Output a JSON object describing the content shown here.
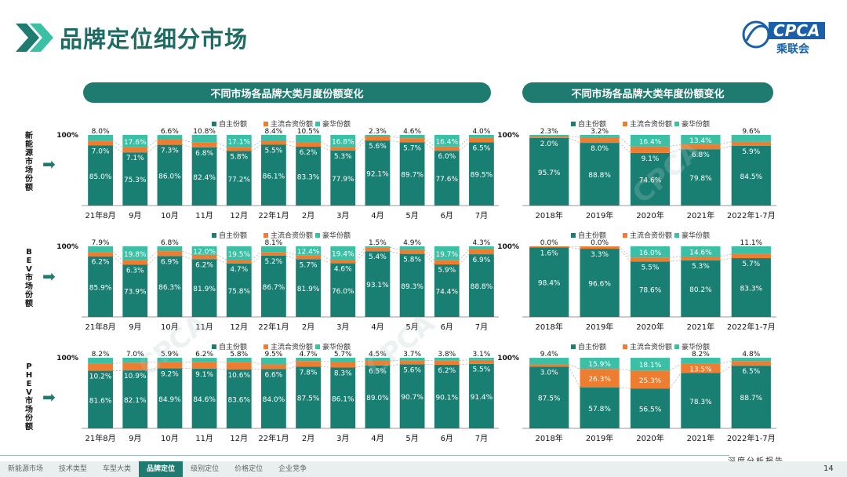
{
  "page": {
    "title": "品牌定位细分市场",
    "logo_text": "CPCA",
    "logo_sub": "乘联会",
    "footer_tag": "深度分析报告",
    "page_number": "14"
  },
  "sections": {
    "monthly_header": "不同市场各品牌大类月度份额变化",
    "annual_header": "不同市场各品牌大类年度份额变化"
  },
  "row_labels": [
    "新能源市场份额",
    "BEV市场份额",
    "PHEV市场份额"
  ],
  "nav": [
    "新能源市场",
    "技术类型",
    "车型大类",
    "品牌定位",
    "级别定位",
    "价格定位",
    "企业竞争"
  ],
  "nav_active": 3,
  "colors": {
    "own": "#1a7f73",
    "jv": "#ed7d31",
    "lux": "#3bbfa5",
    "accent": "#1f7a70"
  },
  "chart_data": [
    {
      "type": "bar",
      "stacked": true,
      "id": "nev-monthly",
      "title": "新能源市场份额",
      "ytick": "100%",
      "categories": [
        "21年8月",
        "9月",
        "10月",
        "11月",
        "12月",
        "22年1月",
        "2月",
        "3月",
        "4月",
        "5月",
        "6月",
        "7月"
      ],
      "series": [
        {
          "name": "自主份额",
          "values": [
            85.0,
            75.3,
            86.0,
            82.4,
            77.2,
            86.1,
            83.3,
            77.9,
            92.1,
            89.7,
            77.6,
            89.5
          ]
        },
        {
          "name": "主流合资份额",
          "values": [
            7.0,
            7.1,
            7.3,
            6.8,
            5.8,
            5.5,
            6.2,
            5.3,
            5.6,
            5.7,
            6.0,
            6.5
          ]
        },
        {
          "name": "豪华份额",
          "values": [
            8.0,
            17.6,
            6.6,
            10.8,
            17.1,
            8.4,
            10.5,
            16.8,
            2.3,
            4.6,
            16.4,
            4.0
          ]
        }
      ]
    },
    {
      "type": "bar",
      "stacked": true,
      "id": "nev-annual",
      "title": "新能源市场份额",
      "ytick": "100%",
      "categories": [
        "2018年",
        "2019年",
        "2020年",
        "2021年",
        "2022年1-7月"
      ],
      "series": [
        {
          "name": "自主份额",
          "values": [
            95.7,
            88.8,
            74.6,
            79.8,
            84.5
          ]
        },
        {
          "name": "主流合资份额",
          "values": [
            2.0,
            8.0,
            9.1,
            6.8,
            5.9
          ]
        },
        {
          "name": "豪华份额",
          "values": [
            2.3,
            3.2,
            16.4,
            13.4,
            9.6
          ]
        }
      ]
    },
    {
      "type": "bar",
      "stacked": true,
      "id": "bev-monthly",
      "title": "BEV市场份额",
      "ytick": "100%",
      "categories": [
        "21年8月",
        "9月",
        "10月",
        "11月",
        "12月",
        "22年1月",
        "2月",
        "3月",
        "4月",
        "5月",
        "6月",
        "7月"
      ],
      "series": [
        {
          "name": "自主份额",
          "values": [
            85.9,
            73.9,
            86.3,
            81.9,
            75.8,
            86.7,
            81.9,
            76.0,
            93.1,
            89.3,
            74.4,
            88.8
          ]
        },
        {
          "name": "主流合资份额",
          "values": [
            6.2,
            6.3,
            6.9,
            6.2,
            4.7,
            5.2,
            5.7,
            4.6,
            5.4,
            5.8,
            5.9,
            6.9
          ]
        },
        {
          "name": "豪华份额",
          "values": [
            7.9,
            19.8,
            6.8,
            12.0,
            19.5,
            8.1,
            12.4,
            19.4,
            1.5,
            4.9,
            19.7,
            4.3
          ]
        }
      ]
    },
    {
      "type": "bar",
      "stacked": true,
      "id": "bev-annual",
      "title": "BEV市场份额",
      "ytick": "100%",
      "categories": [
        "2018年",
        "2019年",
        "2020年",
        "2021年",
        "2022年1-7月"
      ],
      "series": [
        {
          "name": "自主份额",
          "values": [
            98.4,
            96.6,
            78.6,
            80.2,
            83.3
          ]
        },
        {
          "name": "主流合资份额",
          "values": [
            1.6,
            3.3,
            5.5,
            5.3,
            5.7
          ]
        },
        {
          "name": "豪华份额",
          "values": [
            0.0,
            0.0,
            16.0,
            14.6,
            11.1
          ]
        }
      ]
    },
    {
      "type": "bar",
      "stacked": true,
      "id": "phev-monthly",
      "title": "PHEV市场份额",
      "ytick": "100%",
      "categories": [
        "21年8月",
        "9月",
        "10月",
        "11月",
        "12月",
        "22年1月",
        "2月",
        "3月",
        "4月",
        "5月",
        "6月",
        "7月"
      ],
      "series": [
        {
          "name": "自主份额",
          "values": [
            81.6,
            82.1,
            84.9,
            84.6,
            83.6,
            84.0,
            87.5,
            86.1,
            89.0,
            90.7,
            90.1,
            91.4
          ]
        },
        {
          "name": "主流合资份额",
          "values": [
            10.2,
            10.9,
            9.2,
            9.1,
            10.6,
            6.6,
            7.8,
            8.3,
            6.5,
            5.6,
            6.2,
            5.5
          ]
        },
        {
          "name": "豪华份额",
          "values": [
            8.2,
            7.0,
            5.9,
            6.2,
            5.8,
            9.5,
            4.7,
            5.7,
            4.5,
            3.7,
            3.8,
            3.1
          ]
        }
      ]
    },
    {
      "type": "bar",
      "stacked": true,
      "id": "phev-annual",
      "title": "PHEV市场份额",
      "ytick": "100%",
      "categories": [
        "2018年",
        "2019年",
        "2020年",
        "2021年",
        "2022年1-7月"
      ],
      "series": [
        {
          "name": "自主份额",
          "values": [
            87.5,
            57.8,
            56.5,
            78.3,
            88.7
          ]
        },
        {
          "name": "主流合资份额",
          "values": [
            3.0,
            26.3,
            25.3,
            13.5,
            6.5
          ]
        },
        {
          "name": "豪华份额",
          "values": [
            9.4,
            15.9,
            18.1,
            8.2,
            4.8
          ]
        }
      ]
    }
  ]
}
